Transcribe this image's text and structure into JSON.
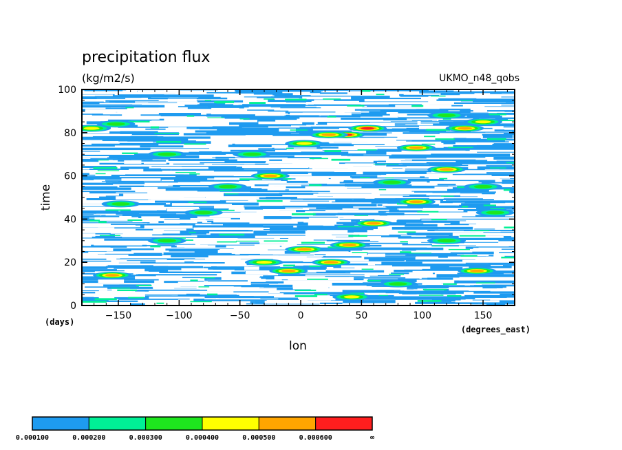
{
  "chart_data": {
    "type": "heatmap",
    "title": "precipitation flux",
    "units": "(kg/m2/s)",
    "dataset": "UKMO_n48_qobs",
    "xlabel": "lon",
    "xunits": "(degrees_east)",
    "ylabel": "time",
    "yunits": "(days)",
    "xlim": [
      -180,
      176
    ],
    "ylim": [
      0,
      100
    ],
    "xticks": [
      -150,
      -100,
      -50,
      0,
      50,
      100,
      150
    ],
    "yticks": [
      0,
      20,
      40,
      60,
      80,
      100
    ],
    "grid": false,
    "colorbar": {
      "levels": [
        "0.000100",
        "0.000200",
        "0.000300",
        "0.000400",
        "0.000500",
        "0.000600",
        "∞"
      ],
      "colors": [
        "#1e9bf0",
        "#00f096",
        "#1ee61e",
        "#ffff00",
        "#ffa500",
        "#ff1e1e"
      ]
    },
    "blobs": [
      {
        "x": 37,
        "y": 79,
        "level": 6
      },
      {
        "x": 55,
        "y": 82,
        "level": 6
      },
      {
        "x": 23,
        "y": 79,
        "level": 5
      },
      {
        "x": 3,
        "y": 75,
        "level": 4
      },
      {
        "x": 95,
        "y": 73,
        "level": 5
      },
      {
        "x": 120,
        "y": 63,
        "level": 5
      },
      {
        "x": 135,
        "y": 82,
        "level": 5
      },
      {
        "x": 150,
        "y": 85,
        "level": 4
      },
      {
        "x": -172,
        "y": 82,
        "level": 4
      },
      {
        "x": -152,
        "y": 84,
        "level": 3
      },
      {
        "x": -25,
        "y": 60,
        "level": 5
      },
      {
        "x": 95,
        "y": 48,
        "level": 5
      },
      {
        "x": 75,
        "y": 57,
        "level": 3
      },
      {
        "x": -148,
        "y": 47,
        "level": 3
      },
      {
        "x": 60,
        "y": 38,
        "level": 5
      },
      {
        "x": 40,
        "y": 28,
        "level": 5
      },
      {
        "x": 3,
        "y": 26,
        "level": 5
      },
      {
        "x": 25,
        "y": 20,
        "level": 5
      },
      {
        "x": -30,
        "y": 20,
        "level": 4
      },
      {
        "x": -10,
        "y": 16,
        "level": 5
      },
      {
        "x": -155,
        "y": 14,
        "level": 5
      },
      {
        "x": 145,
        "y": 16,
        "level": 5
      },
      {
        "x": 160,
        "y": 43,
        "level": 3
      },
      {
        "x": -80,
        "y": 43,
        "level": 3
      },
      {
        "x": 42,
        "y": 4,
        "level": 4
      },
      {
        "x": 120,
        "y": 88,
        "level": 3
      },
      {
        "x": -110,
        "y": 70,
        "level": 3
      },
      {
        "x": -40,
        "y": 70,
        "level": 3
      },
      {
        "x": 150,
        "y": 55,
        "level": 3
      },
      {
        "x": 120,
        "y": 30,
        "level": 3
      },
      {
        "x": -110,
        "y": 30,
        "level": 3
      },
      {
        "x": 80,
        "y": 10,
        "level": 3
      },
      {
        "x": -60,
        "y": 55,
        "level": 3
      }
    ]
  }
}
